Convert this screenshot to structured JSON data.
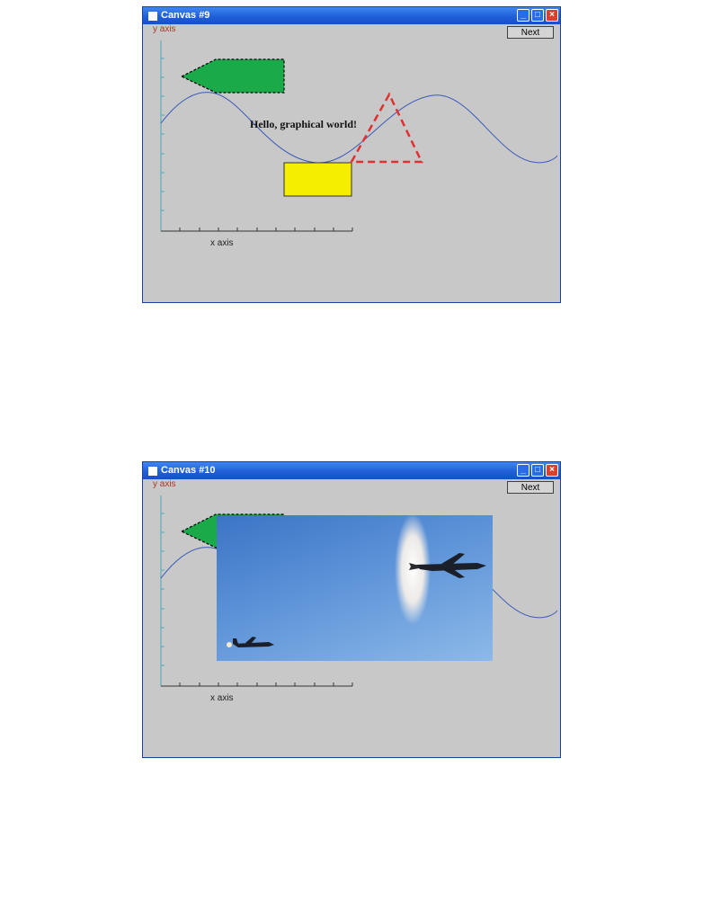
{
  "window1": {
    "title": "Canvas #9",
    "next_label": "Next",
    "y_axis_label": "y axis",
    "x_axis_label": "x axis",
    "text_label": "Hello, graphical world!"
  },
  "window2": {
    "title": "Canvas #10",
    "next_label": "Next",
    "y_axis_label": "y axis",
    "x_axis_label": "x axis"
  },
  "icons": {
    "minimize": "minimize-icon",
    "maximize": "maximize-icon",
    "close": "close-icon"
  },
  "colors": {
    "title_bar": "#1f5fd8",
    "canvas_bg": "#c8c8c8",
    "axis": "#4aa8b8",
    "axis_label": "#a83a2a",
    "curve": "#3a5ab8",
    "arrow_fill": "#1aaa4a",
    "rect_fill": "#f5ee00",
    "triangle_stroke": "#e03030"
  }
}
